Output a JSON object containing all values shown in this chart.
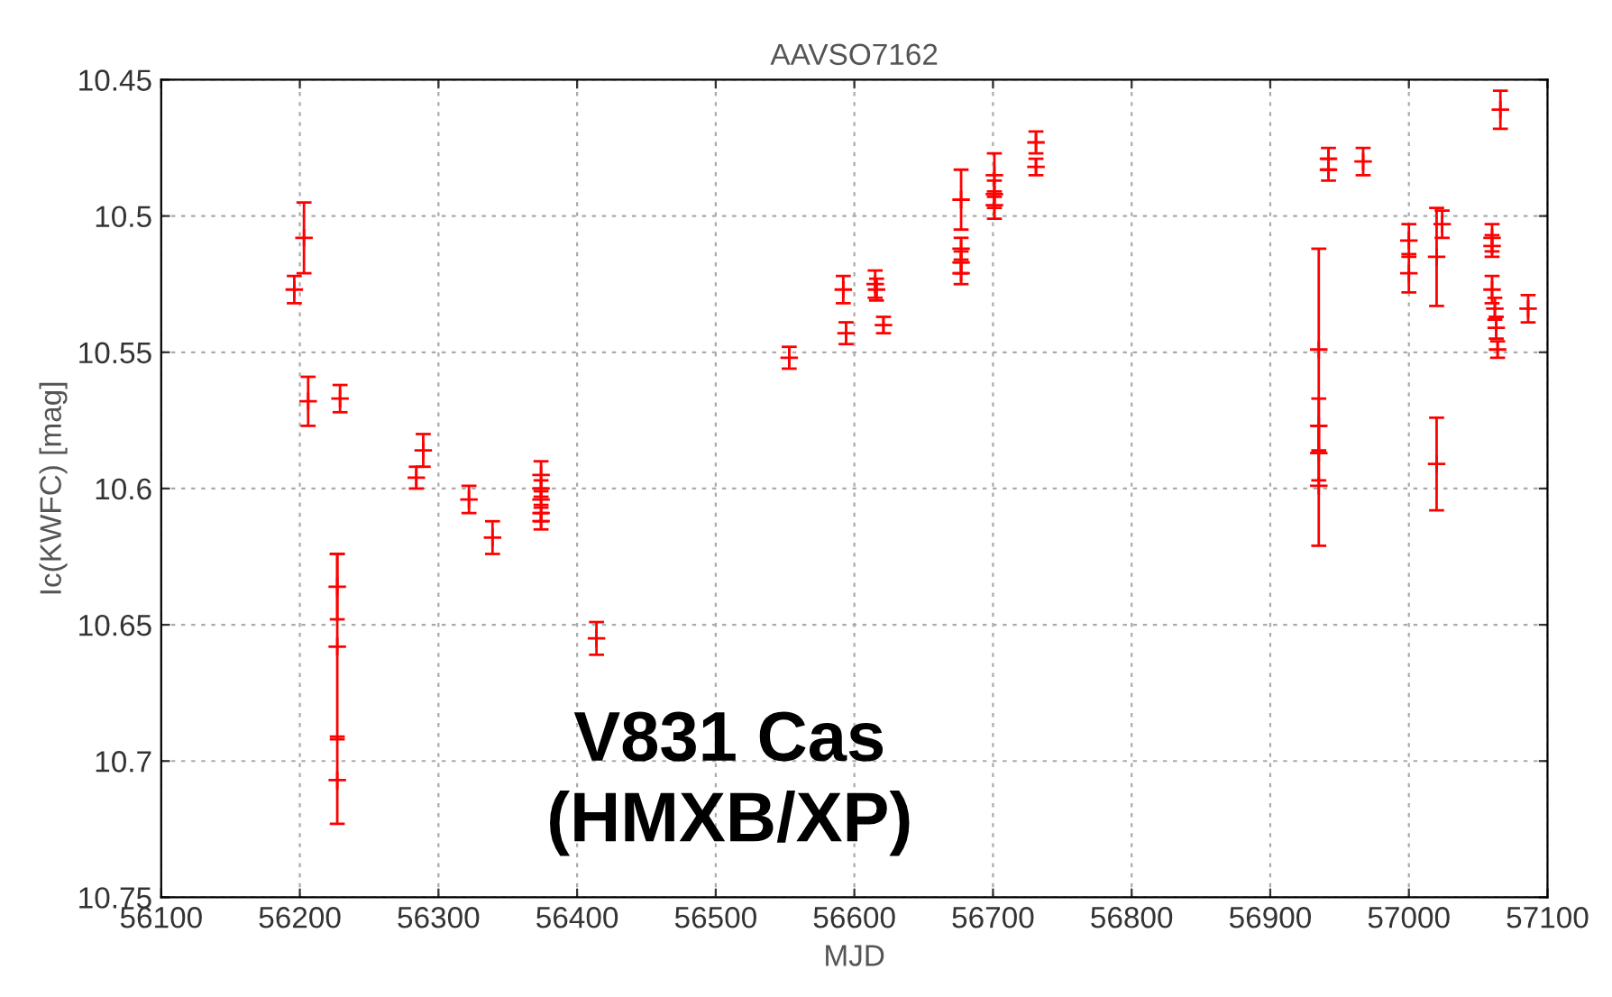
{
  "chart_data": {
    "type": "scatter",
    "title": "AAVSO7162",
    "xlabel": "MJD",
    "ylabel": "Ic(KWFC) [mag]",
    "annotations": [
      "V831 Cas\n(HMXB/XP)"
    ],
    "series": [
      {
        "color": "#ff0000",
        "x": [
          56196,
          56203,
          56206,
          56229,
          56227,
          56227,
          56227,
          56284,
          56289,
          56322,
          56339,
          56374,
          56374,
          56374,
          56374,
          56374,
          56414,
          56553,
          56592,
          56594,
          56615,
          56616,
          56621,
          56677,
          56677,
          56677,
          56677,
          56701,
          56701,
          56701,
          56731,
          56731,
          56942,
          56942,
          56967,
          56935,
          56935,
          56935,
          56935,
          57000,
          57000,
          57020,
          57024,
          57020,
          57060,
          57060,
          57060,
          57062,
          57063,
          57064,
          57066,
          57086
        ],
        "values": [
          10.527,
          10.508,
          10.568,
          10.567,
          10.658,
          10.707,
          10.636,
          10.596,
          10.586,
          10.604,
          10.618,
          10.595,
          10.6,
          10.604,
          10.609,
          10.612,
          10.655,
          10.552,
          10.527,
          10.543,
          10.525,
          10.527,
          10.54,
          10.494,
          10.512,
          10.517,
          10.521,
          10.485,
          10.492,
          10.496,
          10.473,
          10.482,
          10.479,
          10.483,
          10.48,
          10.549,
          10.577,
          10.587,
          10.599,
          10.509,
          10.521,
          10.515,
          10.503,
          10.591,
          10.508,
          10.511,
          10.527,
          10.534,
          10.541,
          10.549,
          10.461,
          10.534
        ],
        "errors": [
          0.005,
          0.013,
          0.009,
          0.005,
          0.034,
          0.016,
          0.012,
          0.004,
          0.006,
          0.005,
          0.006,
          0.005,
          0.003,
          0.003,
          0.003,
          0.003,
          0.006,
          0.004,
          0.005,
          0.004,
          0.005,
          0.004,
          0.003,
          0.011,
          0.004,
          0.004,
          0.004,
          0.008,
          0.005,
          0.005,
          0.004,
          0.003,
          0.004,
          0.004,
          0.005,
          0.037,
          0.01,
          0.01,
          0.022,
          0.006,
          0.007,
          0.018,
          0.005,
          0.017,
          0.005,
          0.004,
          0.005,
          0.004,
          0.004,
          0.003,
          0.007,
          0.005
        ]
      }
    ],
    "xlim": [
      56100,
      57100
    ],
    "xticks": [
      56100,
      56200,
      56300,
      56400,
      56500,
      56600,
      56700,
      56800,
      56900,
      57000,
      57100
    ],
    "ylim": [
      10.75,
      10.45
    ],
    "yticks": [
      10.45,
      10.5,
      10.55,
      10.6,
      10.65,
      10.7,
      10.75
    ],
    "grid": true,
    "marker": "cross"
  }
}
